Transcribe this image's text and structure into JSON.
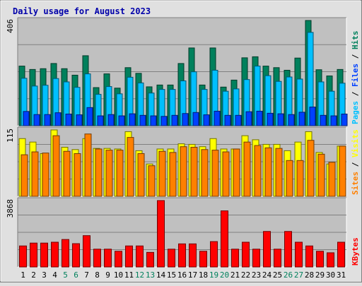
{
  "chart_data": {
    "type": "bar",
    "title": "Daily usage for August 2023",
    "categories": [
      "1",
      "2",
      "3",
      "4",
      "5",
      "6",
      "7",
      "8",
      "9",
      "10",
      "11",
      "12",
      "13",
      "14",
      "15",
      "16",
      "17",
      "18",
      "19",
      "20",
      "21",
      "22",
      "23",
      "24",
      "25",
      "26",
      "27",
      "28",
      "29",
      "30",
      "31"
    ],
    "weekend_days": [
      "5",
      "6",
      "12",
      "13",
      "19",
      "20",
      "26",
      "27"
    ],
    "panels": [
      {
        "id": "hits",
        "ylim": [
          0,
          406
        ],
        "max_label": "406",
        "right_label": [
          "Pages",
          "Files",
          "Hits"
        ],
        "series": [
          {
            "name": "Hits",
            "color": "#00805c",
            "values": [
              230,
              217,
              220,
              240,
              220,
              195,
              270,
              147,
              200,
              145,
              224,
              202,
              150,
              157,
              157,
              240,
              300,
              157,
              300,
              149,
              176,
              262,
              266,
              230,
              224,
              214,
              261,
              406,
              216,
              192,
              217
            ]
          },
          {
            "name": "Files",
            "color": "#00c0ff",
            "values": [
              183,
              153,
              156,
              182,
              169,
              148,
              200,
              121,
              151,
              123,
              187,
              165,
              126,
              140,
              140,
              173,
              208,
              140,
              214,
              133,
              142,
              178,
              230,
              193,
              171,
              188,
              180,
              360,
              169,
              133,
              164
            ]
          },
          {
            "name": "Pages",
            "color": "#0040ff",
            "values": [
              55,
              43,
              43,
              50,
              45,
              42,
              70,
              38,
              43,
              38,
              46,
              40,
              38,
              36,
              40,
              47,
              51,
              42,
              56,
              40,
              40,
              54,
              56,
              48,
              46,
              43,
              52,
              72,
              40,
              38,
              45
            ]
          }
        ]
      },
      {
        "id": "visits",
        "ylim": [
          0,
          115
        ],
        "max_label": "115",
        "right_label": [
          "Sites",
          "Visits"
        ],
        "series": [
          {
            "name": "Visits",
            "color": "#ffff00",
            "values": [
              100,
              94,
              74,
              115,
              85,
              81,
              100,
              83,
              83,
              82,
              112,
              79,
              56,
              82,
              82,
              91,
              90,
              86,
              100,
              82,
              82,
              105,
              98,
              90,
              90,
              79,
              94,
              112,
              76,
              56,
              87
            ]
          },
          {
            "name": "Sites",
            "color": "#ff8000",
            "values": [
              72,
              77,
              75,
              105,
              78,
              74,
              108,
              82,
              80,
              80,
              102,
              74,
              53,
              78,
              76,
              86,
              85,
              81,
              80,
              77,
              82,
              94,
              88,
              84,
              83,
              62,
              62,
              97,
              73,
              59,
              87
            ]
          }
        ]
      },
      {
        "id": "kbytes",
        "ylim": [
          0,
          3868
        ],
        "max_label": "3868",
        "right_label": [
          "KBytes"
        ],
        "series": [
          {
            "name": "KBytes",
            "color": "#ff0000",
            "values": [
              1224,
              1391,
              1391,
              1441,
              1599,
              1357,
              1824,
              1036,
              1036,
              915,
              1224,
              1224,
              849,
              3868,
              1036,
              1344,
              1344,
              915,
              1478,
              3268,
              1036,
              1441,
              1036,
              2068,
              1036,
              2068,
              1441,
              1224,
              915,
              826,
              1441
            ]
          }
        ]
      }
    ]
  }
}
